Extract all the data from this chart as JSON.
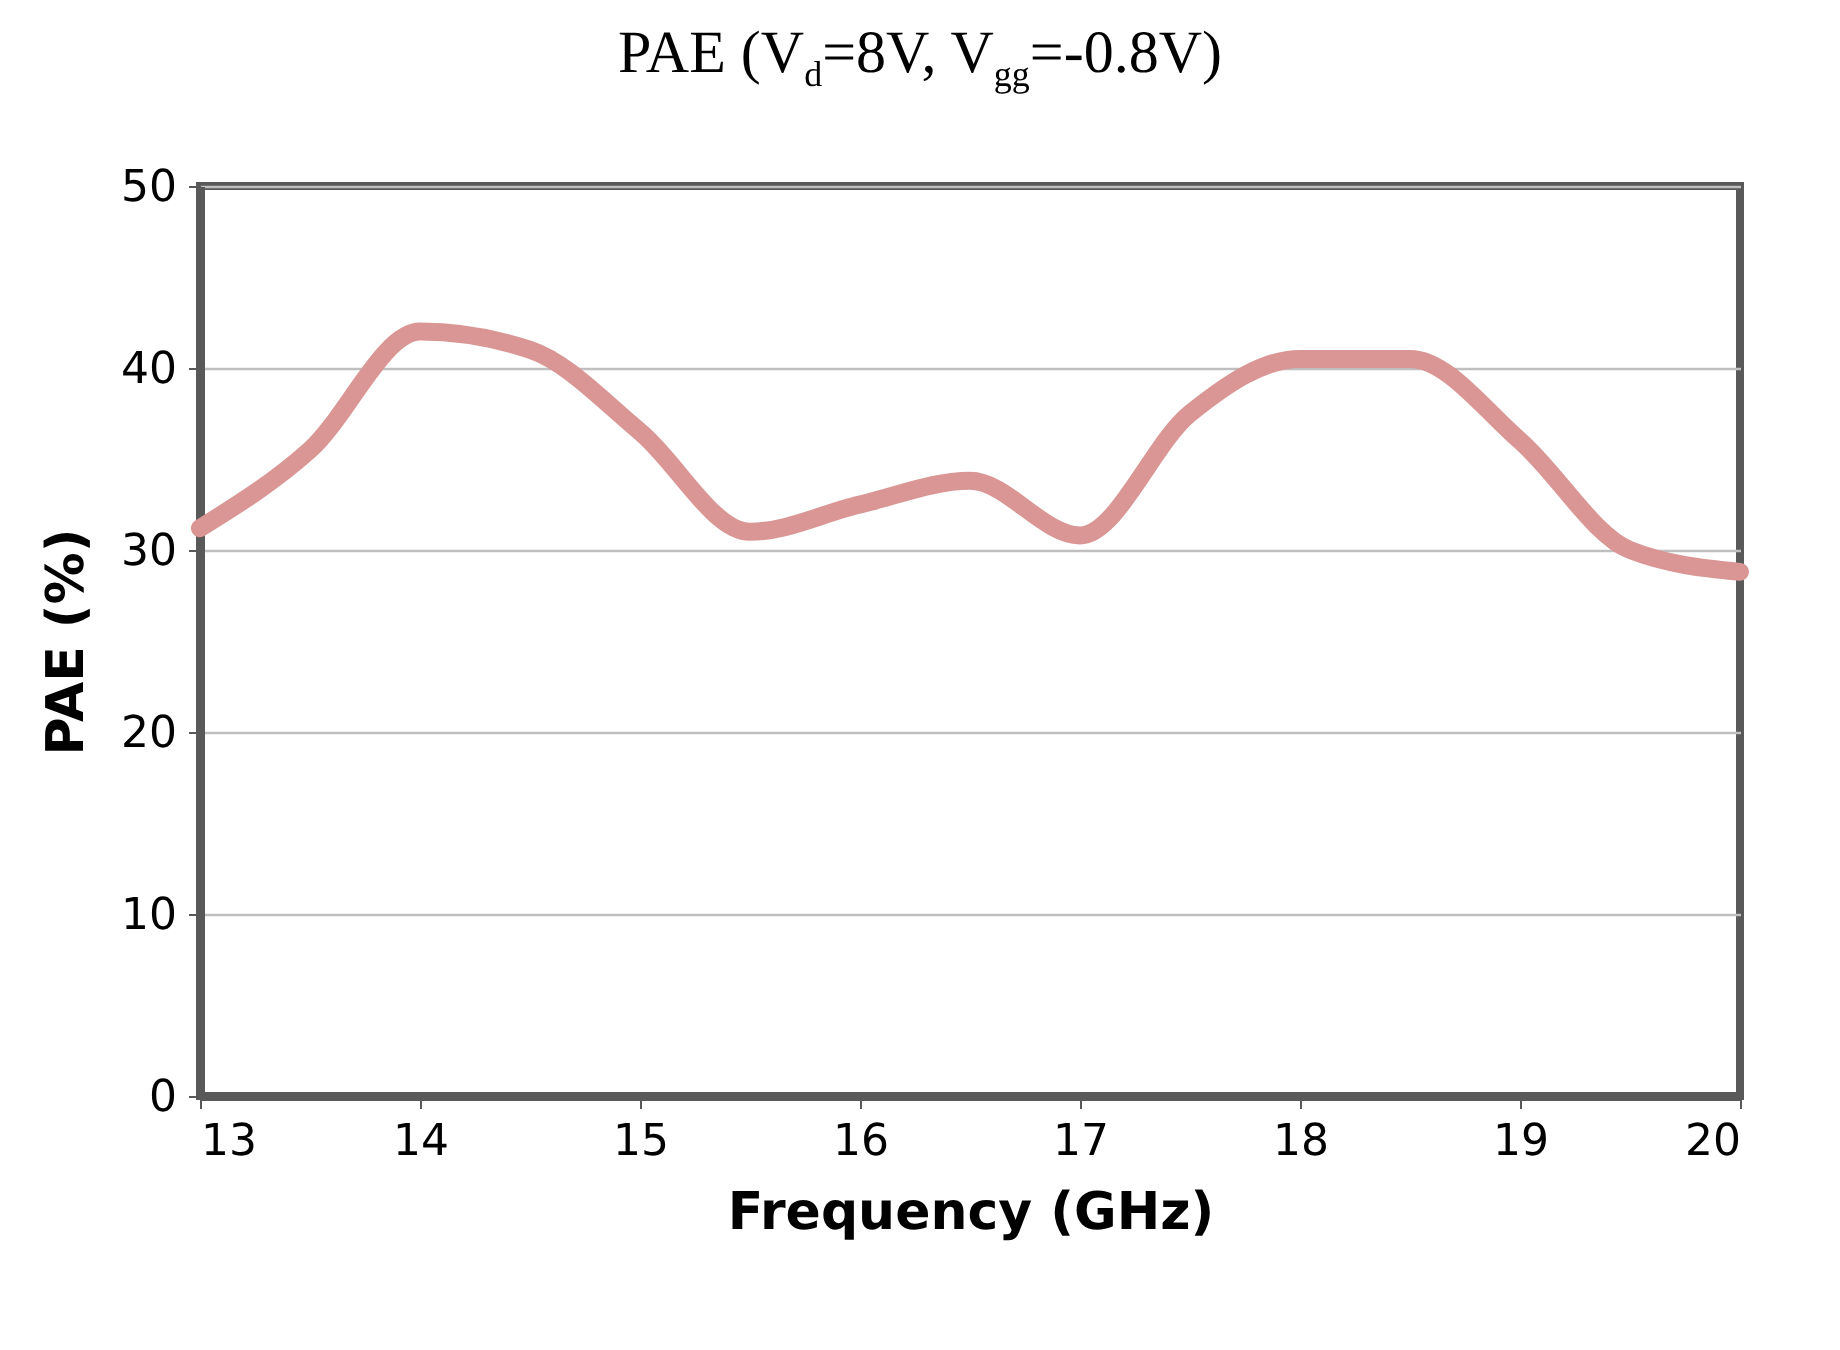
{
  "chart_data": {
    "type": "line",
    "title": "PAE (V$_{d}$=8V, V$_{gg}$=-0.8V)",
    "xlabel": "Frequency (GHz)",
    "ylabel": "PAE (%)",
    "x": [
      13,
      13.5,
      14,
      14.5,
      15,
      15.5,
      16,
      16.5,
      17,
      17.5,
      18,
      18.5,
      19,
      19.5,
      20
    ],
    "series": [
      {
        "color": "#d99694",
        "values": [
          31.2,
          35.5,
          42,
          41,
          36.5,
          31,
          32.5,
          33.8,
          30.8,
          37.5,
          40.5,
          40.5,
          36,
          30,
          28.8
        ]
      }
    ],
    "xlim": [
      13,
      20
    ],
    "xticks": [
      13,
      14,
      15,
      16,
      17,
      18,
      19,
      20
    ],
    "ylim": [
      0,
      50
    ],
    "yticks": [
      0,
      10,
      20,
      30,
      40,
      50
    ],
    "grid": "y",
    "marker": "none",
    "line_style": "solid"
  }
}
